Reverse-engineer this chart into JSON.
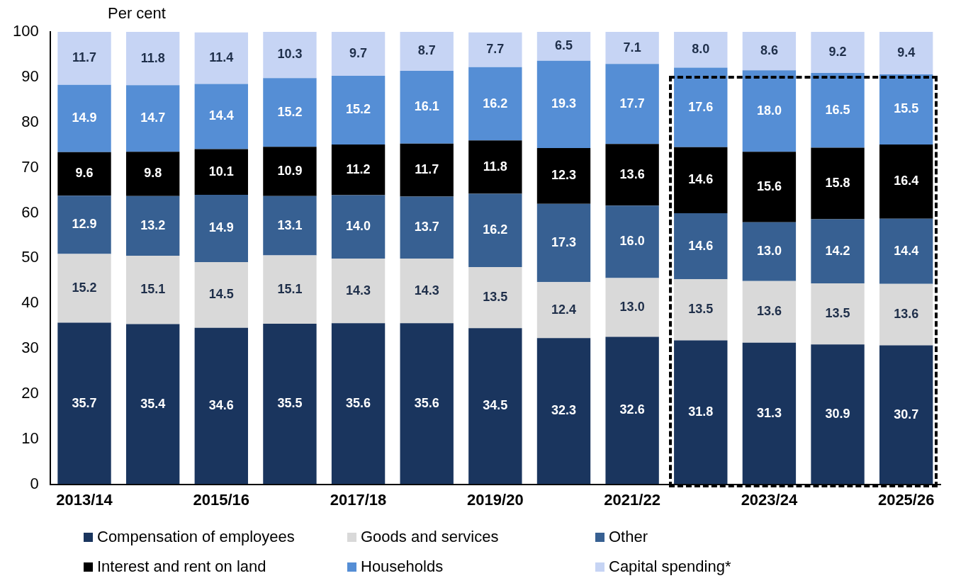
{
  "chart_data": {
    "type": "bar",
    "stacked": true,
    "ylabel": "Per cent",
    "categories": [
      "2013/14",
      null,
      "2015/16",
      null,
      "2017/18",
      null,
      "2019/20",
      null,
      "2021/22",
      null,
      "2023/24",
      null,
      "2025/26"
    ],
    "ylim": [
      0,
      100
    ],
    "yticks": [
      0,
      10,
      20,
      30,
      40,
      50,
      60,
      70,
      80,
      90,
      100
    ],
    "grid": false,
    "legend": "bottom",
    "series": [
      {
        "name": "Compensation of employees",
        "color": "#1a355e",
        "values": [
          35.7,
          35.4,
          34.6,
          35.5,
          35.6,
          35.6,
          34.5,
          32.3,
          32.6,
          31.8,
          31.3,
          30.9,
          30.7
        ],
        "value_labels": [
          "35.7",
          "35.4",
          "34.6",
          "35.5",
          "35.6",
          "35.6",
          "34.5",
          "32.3",
          "32.6",
          "31.8",
          "31.3",
          "30.9",
          "30.7"
        ]
      },
      {
        "name": "Goods and services",
        "color": "#d9d9d9",
        "values": [
          15.2,
          15.1,
          14.5,
          15.1,
          14.3,
          14.3,
          13.5,
          12.4,
          13.0,
          13.5,
          13.6,
          13.5,
          13.6
        ],
        "value_labels": [
          "15.2",
          "15.1",
          "14.5",
          "15.1",
          "14.3",
          "14.3",
          "13.5",
          "12.4",
          "13.0",
          "13.5",
          "13.6",
          "13.5",
          "13.6"
        ]
      },
      {
        "name": "Other",
        "color": "#376092",
        "values": [
          12.9,
          13.2,
          14.9,
          13.1,
          14.0,
          13.7,
          16.2,
          17.3,
          16.0,
          14.6,
          13.0,
          14.2,
          14.4
        ],
        "value_labels": [
          "12.9",
          "13.2",
          "14.9",
          "13.1",
          "14.0",
          "13.7",
          "16.2",
          "17.3",
          "16.0",
          "14.6",
          "13.0",
          "14.2",
          "14.4"
        ]
      },
      {
        "name": "Interest and rent on land",
        "color": "#000000",
        "values": [
          9.6,
          9.8,
          10.1,
          10.9,
          11.2,
          11.7,
          11.8,
          12.3,
          13.6,
          14.6,
          15.6,
          15.8,
          16.4
        ],
        "value_labels": [
          "9.6",
          "9.8",
          "10.1",
          "10.9",
          "11.2",
          "11.7",
          "11.8",
          "12.3",
          "13.6",
          "14.6",
          "15.6",
          "15.8",
          "16.4"
        ]
      },
      {
        "name": "Households",
        "color": "#558ed5",
        "values": [
          14.9,
          14.7,
          14.4,
          15.2,
          15.2,
          16.1,
          16.2,
          19.3,
          17.7,
          17.6,
          18.0,
          16.5,
          15.5
        ],
        "value_labels": [
          "14.9",
          "14.7",
          "14.4",
          "15.2",
          "15.2",
          "16.1",
          "16.2",
          "19.3",
          "17.7",
          "17.6",
          "18.0",
          "16.5",
          "15.5"
        ]
      },
      {
        "name": "Capital spending*",
        "color": "#c6d4f4",
        "values": [
          11.7,
          11.8,
          11.4,
          10.3,
          9.7,
          8.7,
          7.7,
          6.5,
          7.1,
          8.0,
          8.6,
          9.2,
          9.4
        ],
        "value_labels": [
          "11.7",
          "11.8",
          "11.4",
          "10.3",
          "9.7",
          "8.7",
          "7.7",
          "6.5",
          "7.1",
          "8.0",
          "8.6",
          "9.2",
          "9.4"
        ]
      }
    ]
  }
}
